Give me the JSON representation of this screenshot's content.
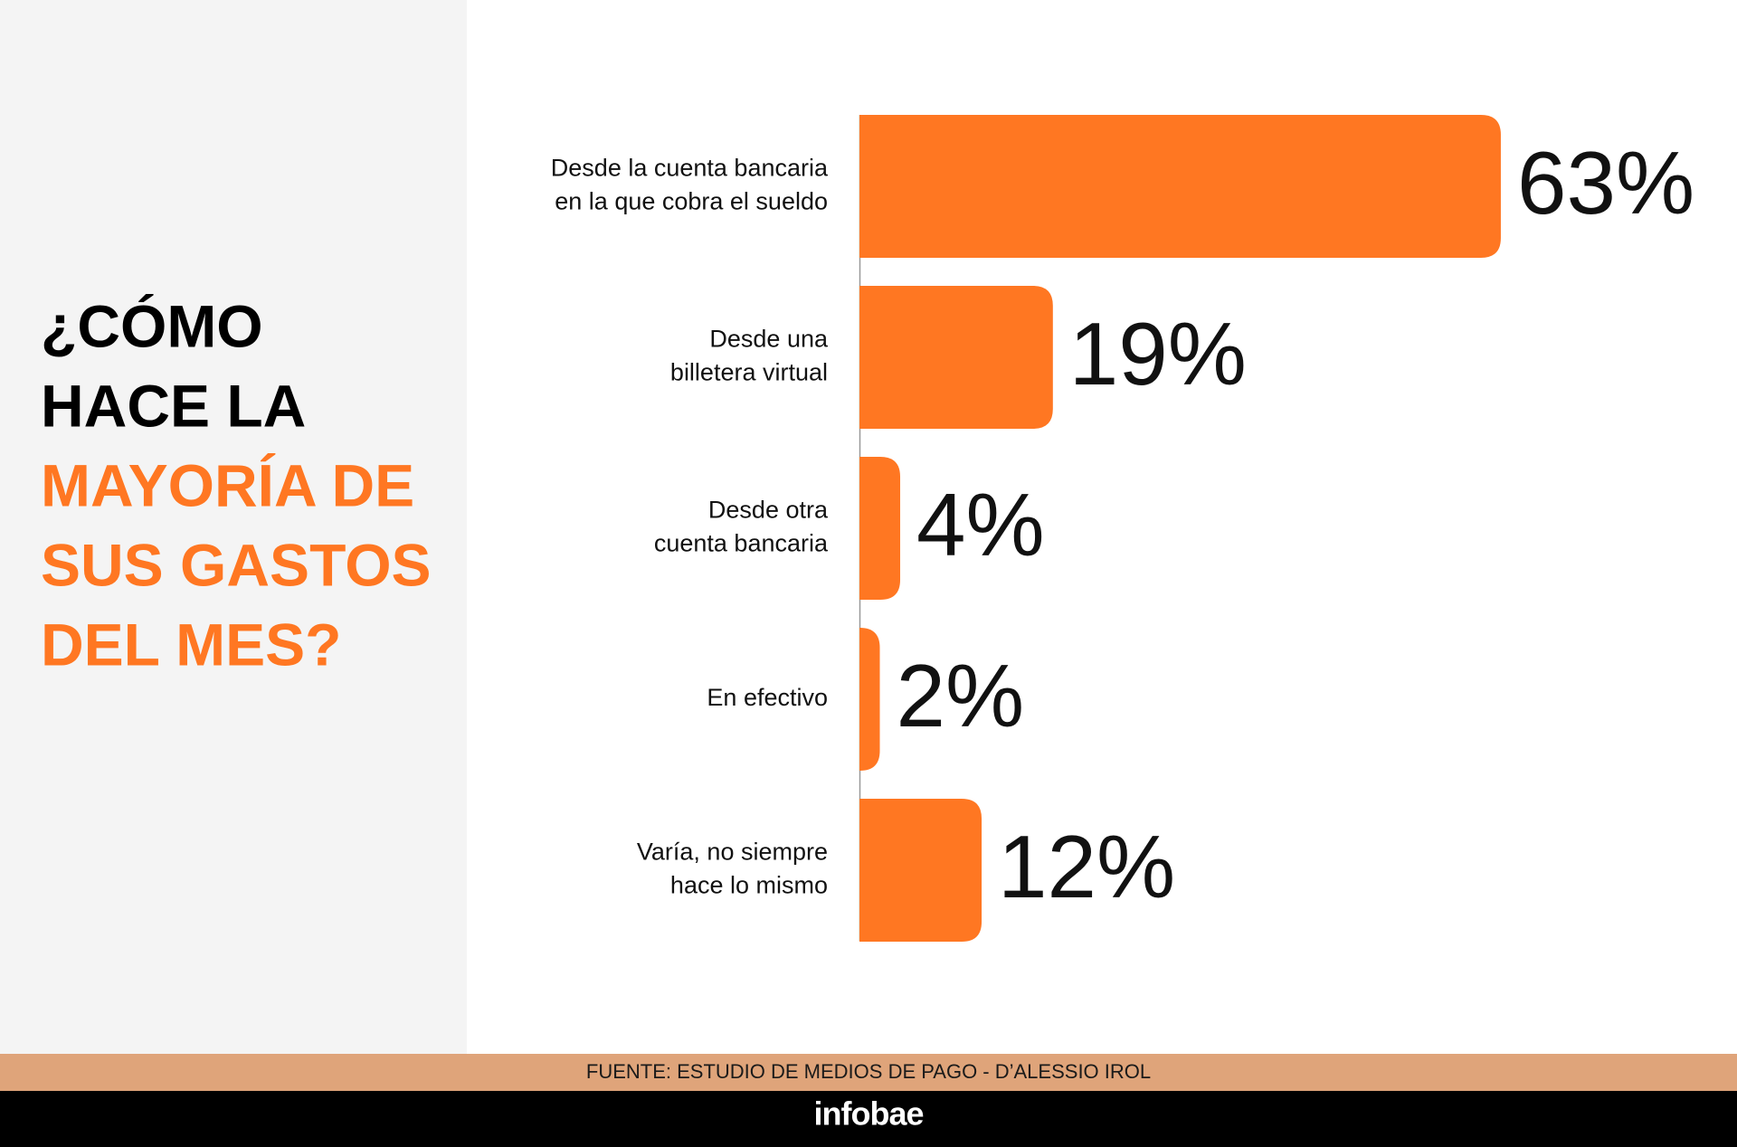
{
  "chart_data": {
    "type": "bar",
    "title_lines": [
      "¿CÓMO",
      "HACE LA",
      "MAYORÍA DE",
      "SUS GASTOS",
      "DEL MES?"
    ],
    "categories": [
      [
        "Desde la cuenta bancaria",
        "en la que cobra el sueldo"
      ],
      [
        "Desde una",
        "billetera virtual"
      ],
      [
        "Desde otra",
        "cuenta bancaria"
      ],
      [
        "En efectivo"
      ],
      [
        "Varía, no siempre",
        "hace lo mismo"
      ]
    ],
    "values": [
      63,
      19,
      4,
      2,
      12
    ],
    "value_labels": [
      "63%",
      "19%",
      "4%",
      "2%",
      "12%"
    ],
    "color": "#ff7722",
    "source": "FUENTE: ESTUDIO DE MEDIOS DE PAGO - D’ALESSIO IROL",
    "brand": "infobae"
  }
}
